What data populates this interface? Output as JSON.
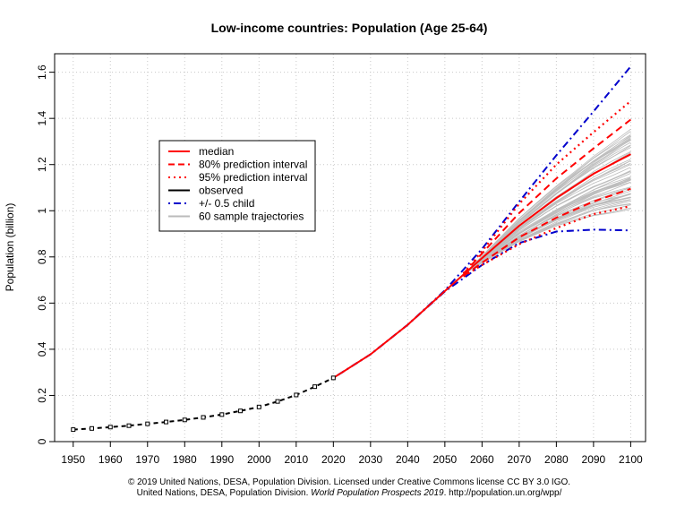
{
  "chart_data": {
    "type": "line",
    "title": "Low-income countries: Population (Age 25-64)",
    "xlabel": "",
    "ylabel": "Population (billion)",
    "xlim": [
      1945,
      2104
    ],
    "ylim": [
      0,
      1.68
    ],
    "x_ticks": [
      1950,
      1960,
      1970,
      1980,
      1990,
      2000,
      2010,
      2020,
      2030,
      2040,
      2050,
      2060,
      2070,
      2080,
      2090,
      2100
    ],
    "y_ticks": [
      0,
      0.2,
      0.4,
      0.6,
      0.8,
      1,
      1.2,
      1.4,
      1.6
    ],
    "y_tick_labels": [
      "0",
      "0.2",
      "0.4",
      "0.6",
      "0.8",
      "1",
      "1.2",
      "1.4",
      "1.6"
    ],
    "grid": true,
    "legend_position": "upper-left",
    "colors": {
      "red": "#ff0000",
      "darkred": "#dd0000",
      "blue": "#0000cc",
      "black": "#000000",
      "gray": "#bbbbbb"
    },
    "series": [
      {
        "name": "observed",
        "style": "dashed-points",
        "color": "#000000",
        "x": [
          1950,
          1955,
          1960,
          1965,
          1970,
          1975,
          1980,
          1985,
          1990,
          1995,
          2000,
          2005,
          2010,
          2015,
          2020
        ],
        "y": [
          0.052,
          0.057,
          0.063,
          0.069,
          0.077,
          0.085,
          0.094,
          0.105,
          0.117,
          0.133,
          0.15,
          0.174,
          0.202,
          0.238,
          0.276
        ]
      },
      {
        "name": "median",
        "style": "solid",
        "color": "#ff0000",
        "x": [
          2020,
          2030,
          2040,
          2050,
          2060,
          2070,
          2080,
          2090,
          2100
        ],
        "y": [
          0.276,
          0.378,
          0.506,
          0.652,
          0.795,
          0.935,
          1.055,
          1.16,
          1.245
        ]
      },
      {
        "name": "80% prediction interval upper",
        "style": "dashed",
        "color": "#ff0000",
        "x": [
          2055,
          2060,
          2070,
          2080,
          2090,
          2100
        ],
        "y": [
          0.727,
          0.815,
          0.99,
          1.14,
          1.27,
          1.395
        ]
      },
      {
        "name": "80% prediction interval lower",
        "style": "dashed",
        "color": "#ff0000",
        "x": [
          2055,
          2060,
          2070,
          2080,
          2090,
          2100
        ],
        "y": [
          0.717,
          0.775,
          0.885,
          0.97,
          1.04,
          1.095
        ]
      },
      {
        "name": "95% prediction interval upper",
        "style": "dotted",
        "color": "#ff0000",
        "x": [
          2055,
          2060,
          2070,
          2080,
          2090,
          2100
        ],
        "y": [
          0.729,
          0.825,
          1.03,
          1.2,
          1.34,
          1.475
        ]
      },
      {
        "name": "95% prediction interval lower",
        "style": "dotted",
        "color": "#ff0000",
        "x": [
          2055,
          2060,
          2070,
          2080,
          2090,
          2100
        ],
        "y": [
          0.715,
          0.765,
          0.855,
          0.925,
          0.985,
          1.02
        ]
      },
      {
        "name": "+/- 0.5 child upper",
        "style": "dashdot",
        "color": "#0000cc",
        "x": [
          2020,
          2030,
          2040,
          2050,
          2060,
          2070,
          2080,
          2090,
          2100
        ],
        "y": [
          0.276,
          0.378,
          0.506,
          0.655,
          0.835,
          1.04,
          1.24,
          1.43,
          1.625
        ]
      },
      {
        "name": "+/- 0.5 child lower",
        "style": "dashdot",
        "color": "#0000cc",
        "x": [
          2020,
          2030,
          2040,
          2050,
          2060,
          2070,
          2080,
          2090,
          2100
        ],
        "y": [
          0.276,
          0.378,
          0.506,
          0.65,
          0.765,
          0.86,
          0.91,
          0.918,
          0.915
        ]
      }
    ],
    "sample_trajectories": {
      "count": 60,
      "start_year": 2055,
      "end_range": [
        1.0,
        1.35
      ]
    },
    "legend": [
      {
        "label": "median",
        "style": "solid",
        "color": "#ff0000"
      },
      {
        "label": "80% prediction interval",
        "style": "dashed",
        "color": "#ff0000"
      },
      {
        "label": "95% prediction interval",
        "style": "dotted",
        "color": "#ff0000"
      },
      {
        "label": "observed",
        "style": "solid",
        "color": "#000000"
      },
      {
        "label": "+/- 0.5 child",
        "style": "dashdot",
        "color": "#0000cc"
      },
      {
        "label": "60 sample trajectories",
        "style": "solid",
        "color": "#bbbbbb"
      }
    ]
  },
  "footer": {
    "line1": "© 2019 United Nations, DESA, Population Division. Licensed under Creative Commons license CC BY 3.0 IGO.",
    "line2_prefix": "United Nations, DESA, Population Division. ",
    "line2_italic": "World Population Prospects 2019",
    "line2_suffix": ". http://population.un.org/wpp/"
  }
}
